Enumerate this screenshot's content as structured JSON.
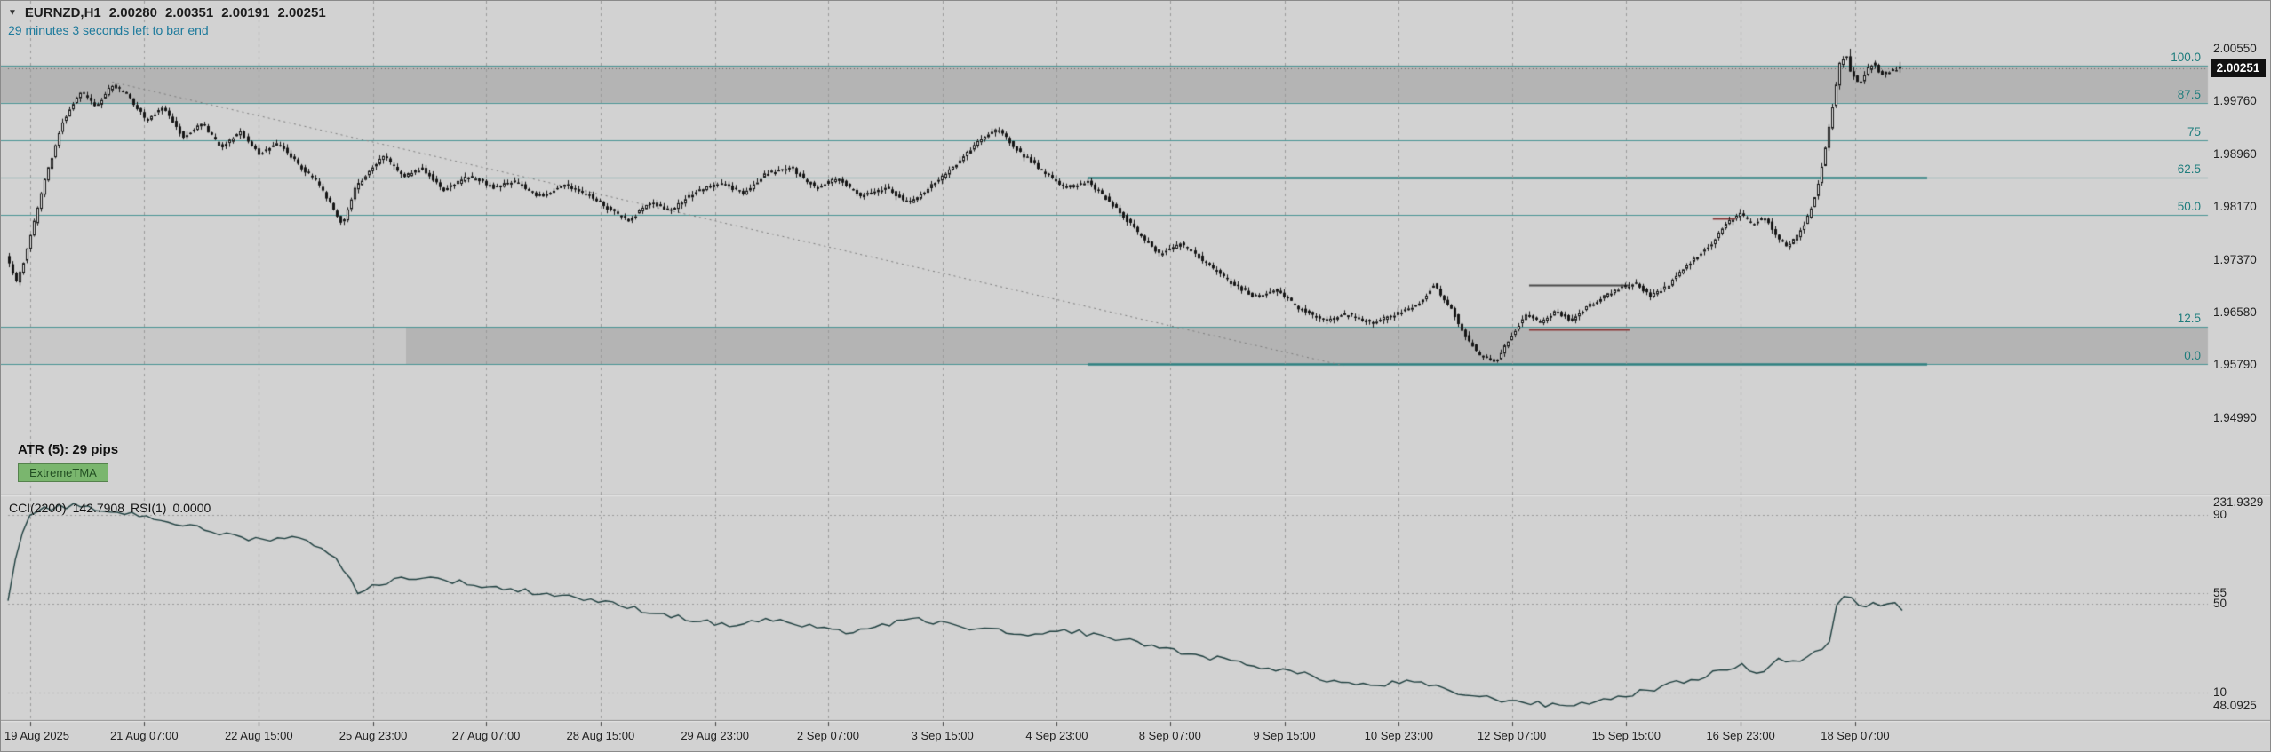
{
  "window": {
    "symbol_title": "EURNZD,H1",
    "ohlc": {
      "open": "2.00280",
      "high": "2.00351",
      "low": "2.00191",
      "close": "2.00251"
    },
    "timer_text": "29 minutes 3 seconds left to bar end",
    "atr_text": "ATR (5): 29 pips",
    "badge_text": "ExtremeTMA"
  },
  "icons": {
    "dropdown": "▼"
  },
  "colors": {
    "background": "#d2d2d2",
    "band": "#b4b4b4",
    "band_light": "rgba(214,214,214,0.6)",
    "grid": "#9a9a9a",
    "fib_line": "#4a9595",
    "fib_line_strong": "#2e8080",
    "fib_label": "#1f7d7d",
    "candle": "#161616",
    "bull_fill": "#f0f0f0",
    "bear_fill": "#161616",
    "axis_text": "#222222",
    "current_price_bg": "#111111",
    "current_price_text": "#ffffff",
    "timer_text": "#1d7a9c",
    "badge_bg": "#7ab66e",
    "badge_text": "#234f23",
    "sub_line": "#1e3f3f",
    "trendline": "#7d7d7d",
    "segment_dark": "#4a4a4a",
    "segment_red": "#8b3a3a",
    "divider_dark": "#8a8a8a",
    "divider_light": "#eeeeee"
  },
  "chart_data": {
    "type": "candlestick",
    "symbol": "EURNZD",
    "timeframe": "H1",
    "price_axis_labels": [
      2.0055,
      1.9976,
      1.9896,
      1.9817,
      1.9737,
      1.9658,
      1.9579,
      1.9499
    ],
    "current_price": 2.00251,
    "last_bar": {
      "open": 2.0028,
      "high": 2.00351,
      "low": 2.00191,
      "close": 2.00251
    },
    "fib_levels": [
      {
        "label": "100.0",
        "price": 2.003
      },
      {
        "label": "87.5",
        "price": 1.99738
      },
      {
        "label": "75",
        "price": 1.99175
      },
      {
        "label": "62.5",
        "price": 1.98613
      },
      {
        "label": "50.0",
        "price": 1.9805
      },
      {
        "label": "12.5",
        "price": 1.96363
      },
      {
        "label": "0.0",
        "price": 1.958
      }
    ],
    "strong_levels": [
      "62.5",
      "0.0"
    ],
    "bands": [
      {
        "top_price": 2.003,
        "bottom_price": 1.99738,
        "light_left": false
      },
      {
        "top_price": 1.96363,
        "bottom_price": 1.958,
        "light_left": true
      }
    ],
    "trendline": {
      "x1": 0.055,
      "price1": 2.0005,
      "x2": 0.705,
      "price2": 1.9578
    },
    "segments": [
      {
        "x1": 0.803,
        "x2": 0.856,
        "price": 1.97,
        "color_key": "segment_dark"
      },
      {
        "x1": 0.803,
        "x2": 0.856,
        "price": 1.9633,
        "color_key": "segment_red"
      },
      {
        "x1": 0.9,
        "x2": 0.912,
        "price": 1.98,
        "color_key": "segment_red"
      }
    ],
    "time_labels": [
      {
        "x": 0.0115,
        "label": "19 Aug 2025"
      },
      {
        "x": 0.0719,
        "label": "21 Aug 07:00"
      },
      {
        "x": 0.1324,
        "label": "22 Aug 15:00"
      },
      {
        "x": 0.1928,
        "label": "25 Aug 23:00"
      },
      {
        "x": 0.2524,
        "label": "27 Aug 07:00"
      },
      {
        "x": 0.3128,
        "label": "28 Aug 15:00"
      },
      {
        "x": 0.3732,
        "label": "29 Aug 23:00"
      },
      {
        "x": 0.4329,
        "label": "2 Sep 07:00"
      },
      {
        "x": 0.4933,
        "label": "3 Sep 15:00"
      },
      {
        "x": 0.5537,
        "label": "4 Sep 23:00"
      },
      {
        "x": 0.6134,
        "label": "8 Sep 07:00"
      },
      {
        "x": 0.6738,
        "label": "9 Sep 15:00"
      },
      {
        "x": 0.7342,
        "label": "10 Sep 23:00"
      },
      {
        "x": 0.7939,
        "label": "12 Sep 07:00"
      },
      {
        "x": 0.8543,
        "label": "15 Sep 15:00"
      },
      {
        "x": 0.9147,
        "label": "16 Sep 23:00"
      },
      {
        "x": 0.9751,
        "label": "18 Sep 07:00"
      }
    ],
    "bars": 532,
    "price_anchors": [
      [
        0.0,
        1.9745
      ],
      [
        0.006,
        1.9702
      ],
      [
        0.012,
        1.976
      ],
      [
        0.02,
        1.985
      ],
      [
        0.03,
        1.9945
      ],
      [
        0.04,
        1.999
      ],
      [
        0.048,
        1.9968
      ],
      [
        0.056,
        2.0
      ],
      [
        0.064,
        1.9988
      ],
      [
        0.074,
        1.9948
      ],
      [
        0.084,
        1.9966
      ],
      [
        0.094,
        1.9922
      ],
      [
        0.104,
        1.9944
      ],
      [
        0.114,
        1.9906
      ],
      [
        0.124,
        1.993
      ],
      [
        0.134,
        1.9896
      ],
      [
        0.144,
        1.9914
      ],
      [
        0.154,
        1.9882
      ],
      [
        0.164,
        1.9856
      ],
      [
        0.172,
        1.982
      ],
      [
        0.178,
        1.9788
      ],
      [
        0.184,
        1.9842
      ],
      [
        0.192,
        1.9872
      ],
      [
        0.2,
        1.9893
      ],
      [
        0.21,
        1.9862
      ],
      [
        0.22,
        1.9876
      ],
      [
        0.232,
        1.9842
      ],
      [
        0.245,
        1.9864
      ],
      [
        0.258,
        1.9846
      ],
      [
        0.27,
        1.9856
      ],
      [
        0.282,
        1.9832
      ],
      [
        0.295,
        1.985
      ],
      [
        0.308,
        1.9836
      ],
      [
        0.32,
        1.9812
      ],
      [
        0.33,
        1.9796
      ],
      [
        0.34,
        1.9824
      ],
      [
        0.352,
        1.9812
      ],
      [
        0.365,
        1.984
      ],
      [
        0.378,
        1.9854
      ],
      [
        0.39,
        1.9836
      ],
      [
        0.402,
        1.9868
      ],
      [
        0.415,
        1.9876
      ],
      [
        0.428,
        1.9846
      ],
      [
        0.44,
        1.986
      ],
      [
        0.452,
        1.9832
      ],
      [
        0.465,
        1.9846
      ],
      [
        0.478,
        1.9822
      ],
      [
        0.49,
        1.985
      ],
      [
        0.503,
        1.9882
      ],
      [
        0.515,
        1.9918
      ],
      [
        0.525,
        1.9934
      ],
      [
        0.535,
        1.9902
      ],
      [
        0.548,
        1.9872
      ],
      [
        0.56,
        1.9846
      ],
      [
        0.572,
        1.9856
      ],
      [
        0.585,
        1.9822
      ],
      [
        0.598,
        1.9782
      ],
      [
        0.61,
        1.9746
      ],
      [
        0.622,
        1.9762
      ],
      [
        0.635,
        1.9732
      ],
      [
        0.648,
        1.9702
      ],
      [
        0.66,
        1.9682
      ],
      [
        0.672,
        1.9692
      ],
      [
        0.685,
        1.9662
      ],
      [
        0.698,
        1.9646
      ],
      [
        0.71,
        1.9656
      ],
      [
        0.722,
        1.9642
      ],
      [
        0.735,
        1.9656
      ],
      [
        0.748,
        1.9672
      ],
      [
        0.755,
        1.97
      ],
      [
        0.765,
        1.9662
      ],
      [
        0.772,
        1.9622
      ],
      [
        0.78,
        1.9592
      ],
      [
        0.788,
        1.9585
      ],
      [
        0.796,
        1.962
      ],
      [
        0.804,
        1.9656
      ],
      [
        0.812,
        1.9642
      ],
      [
        0.82,
        1.966
      ],
      [
        0.828,
        1.9646
      ],
      [
        0.836,
        1.9666
      ],
      [
        0.845,
        1.9682
      ],
      [
        0.855,
        1.9696
      ],
      [
        0.862,
        1.9702
      ],
      [
        0.87,
        1.9682
      ],
      [
        0.878,
        1.9696
      ],
      [
        0.886,
        1.972
      ],
      [
        0.894,
        1.9742
      ],
      [
        0.902,
        1.9762
      ],
      [
        0.91,
        1.9792
      ],
      [
        0.917,
        1.9806
      ],
      [
        0.924,
        1.979
      ],
      [
        0.93,
        1.9802
      ],
      [
        0.936,
        1.9776
      ],
      [
        0.942,
        1.9754
      ],
      [
        0.948,
        1.9776
      ],
      [
        0.953,
        1.9802
      ],
      [
        0.958,
        1.9844
      ],
      [
        0.962,
        1.9902
      ],
      [
        0.966,
        1.9965
      ],
      [
        0.9695,
        2.003
      ],
      [
        0.973,
        2.0048
      ],
      [
        0.976,
        2.0018
      ],
      [
        0.98,
        2.0002
      ],
      [
        0.984,
        2.0022
      ],
      [
        0.988,
        2.0036
      ],
      [
        0.992,
        2.0014
      ],
      [
        0.996,
        2.0022
      ],
      [
        1.0,
        2.0025
      ]
    ]
  },
  "sub_chart": {
    "label_parts": {
      "ind1": "CCI(2200)",
      "val1": "142.7908",
      "ind2": "RSI(1)",
      "val2": "0.0000"
    },
    "levels": [
      {
        "v": 90,
        "label": "90"
      },
      {
        "v": 55,
        "label": "55"
      },
      {
        "v": 50,
        "label": "50"
      },
      {
        "v": 10,
        "label": "10"
      }
    ],
    "scale_top_label": "231.9329",
    "scale_bottom_label": "48.0925",
    "line_anchors": [
      [
        0.0,
        52
      ],
      [
        0.004,
        70
      ],
      [
        0.01,
        88
      ],
      [
        0.02,
        93
      ],
      [
        0.035,
        94
      ],
      [
        0.05,
        92
      ],
      [
        0.07,
        90
      ],
      [
        0.09,
        86
      ],
      [
        0.11,
        82
      ],
      [
        0.13,
        79
      ],
      [
        0.15,
        80
      ],
      [
        0.165,
        76
      ],
      [
        0.175,
        69
      ],
      [
        0.185,
        54
      ],
      [
        0.195,
        59
      ],
      [
        0.21,
        62
      ],
      [
        0.23,
        61
      ],
      [
        0.25,
        58
      ],
      [
        0.27,
        56
      ],
      [
        0.3,
        53
      ],
      [
        0.33,
        48
      ],
      [
        0.36,
        43
      ],
      [
        0.38,
        40
      ],
      [
        0.4,
        43
      ],
      [
        0.42,
        40
      ],
      [
        0.44,
        37
      ],
      [
        0.46,
        40
      ],
      [
        0.48,
        43
      ],
      [
        0.5,
        40
      ],
      [
        0.52,
        38
      ],
      [
        0.54,
        35
      ],
      [
        0.56,
        38
      ],
      [
        0.58,
        35
      ],
      [
        0.6,
        32
      ],
      [
        0.62,
        28
      ],
      [
        0.64,
        25
      ],
      [
        0.66,
        22
      ],
      [
        0.68,
        19
      ],
      [
        0.7,
        15
      ],
      [
        0.72,
        13
      ],
      [
        0.74,
        15
      ],
      [
        0.755,
        12
      ],
      [
        0.77,
        9
      ],
      [
        0.785,
        7
      ],
      [
        0.8,
        6
      ],
      [
        0.815,
        4
      ],
      [
        0.83,
        5
      ],
      [
        0.845,
        7
      ],
      [
        0.86,
        10
      ],
      [
        0.875,
        13
      ],
      [
        0.89,
        16
      ],
      [
        0.905,
        20
      ],
      [
        0.915,
        22
      ],
      [
        0.925,
        19
      ],
      [
        0.935,
        25
      ],
      [
        0.945,
        24
      ],
      [
        0.952,
        27
      ],
      [
        0.958,
        30
      ],
      [
        0.963,
        33
      ],
      [
        0.9665,
        56
      ],
      [
        0.97,
        53
      ],
      [
        0.975,
        51
      ],
      [
        0.98,
        49
      ],
      [
        0.985,
        51
      ],
      [
        0.99,
        49
      ],
      [
        0.995,
        50
      ],
      [
        1.0,
        48
      ]
    ]
  }
}
